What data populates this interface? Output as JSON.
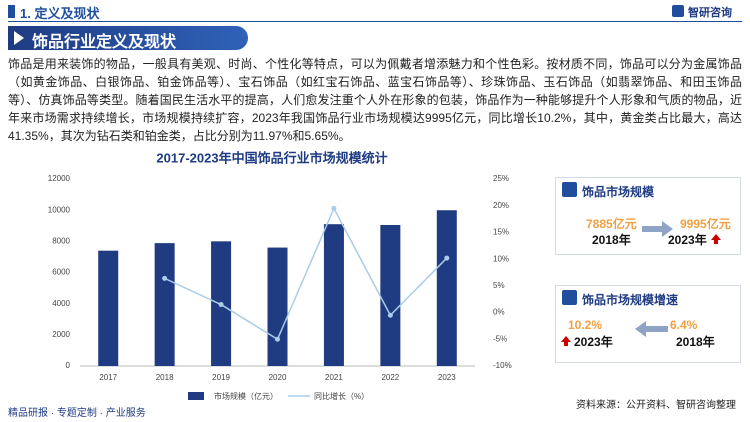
{
  "header": {
    "section": "1. 定义及现状",
    "logo": "智研咨询"
  },
  "banner": "饰品行业定义及现状",
  "paragraph": "饰品是用来装饰的物品，一般具有美观、时尚、个性化等特点，可以为佩戴者增添魅力和个性色彩。按材质不同，饰品可以分为金属饰品（如黄金饰品、白银饰品、铂金饰品等）、宝石饰品（如红宝石饰品、蓝宝石饰品等）、珍珠饰品、玉石饰品（如翡翠饰品、和田玉饰品等）、仿真饰品等类型。随着国民生活水平的提高，人们愈发注重个人外在形象的包装，饰品作为一种能够提升个人形象和气质的物品，近年来市场需求持续增长，市场规模持续扩容，2023年我国饰品行业市场规模达9995亿元，同比增长10.2%，其中，黄金类占比最大，高达41.35%，其次为钻石类和铂金类，占比分别为11.97%和5.65%。",
  "chart_data": {
    "type": "bar",
    "title": "2017-2023年中国饰品行业市场规模统计",
    "categories": [
      "2017",
      "2018",
      "2019",
      "2020",
      "2021",
      "2022",
      "2023"
    ],
    "series": [
      {
        "name": "市场规模（亿元）",
        "type": "bar",
        "color": "#1f3b82",
        "values": [
          7400,
          7885,
          8000,
          7600,
          9100,
          9050,
          9995
        ]
      },
      {
        "name": "同比增长（%）",
        "type": "line",
        "axis": "y2",
        "color": "#a9cde9",
        "values": [
          null,
          6.4,
          1.5,
          -5,
          19.5,
          -0.5,
          10.2
        ]
      }
    ],
    "ylim": [
      0,
      12000
    ],
    "yticks": [
      0,
      2000,
      4000,
      6000,
      8000,
      10000,
      12000
    ],
    "y2lim": [
      -10,
      25
    ],
    "y2ticks": [
      {
        "value": -10,
        "label": "-10%"
      },
      {
        "value": -5,
        "label": "-5%"
      },
      {
        "value": 0,
        "label": "0%"
      },
      {
        "value": 5,
        "label": "5%"
      },
      {
        "value": 10,
        "label": "10%"
      },
      {
        "value": 15,
        "label": "15%"
      },
      {
        "value": 20,
        "label": "20%"
      },
      {
        "value": 25,
        "label": "25%"
      }
    ],
    "grid": false,
    "legend": "bottom"
  },
  "panels": [
    {
      "title": "饰品市场规模",
      "left_value": "7885亿元",
      "left_year": "2018年",
      "right_value": "9995亿元",
      "right_year": "2023年"
    },
    {
      "title": "饰品市场规模增速",
      "left_value": "10.2%",
      "left_year": "2023年",
      "right_value": "6.4%",
      "right_year": "2018年"
    }
  ],
  "footer": {
    "left": "精品研报 · 专题定制 · 产业服务",
    "source": "资料来源：公开资料、智研咨询整理"
  }
}
